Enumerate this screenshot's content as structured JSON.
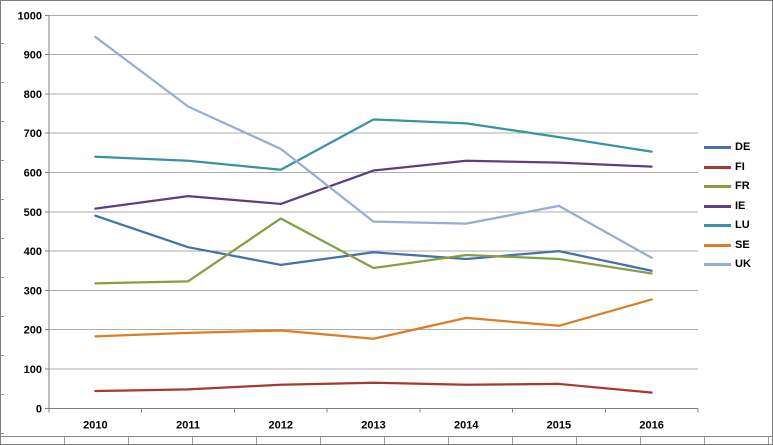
{
  "chart_data": {
    "type": "line",
    "title": "",
    "xlabel": "",
    "ylabel": "",
    "categories": [
      "2010",
      "2011",
      "2012",
      "2013",
      "2014",
      "2015",
      "2016"
    ],
    "series": [
      {
        "name": "DE",
        "color": "#4572A7",
        "values": [
          490,
          410,
          365,
          397,
          380,
          400,
          350
        ]
      },
      {
        "name": "FI",
        "color": "#A33B30",
        "values": [
          44,
          48,
          60,
          65,
          60,
          62,
          40
        ]
      },
      {
        "name": "FR",
        "color": "#84A043",
        "values": [
          318,
          323,
          483,
          357,
          390,
          380,
          343
        ]
      },
      {
        "name": "IE",
        "color": "#5A4080",
        "values": [
          508,
          540,
          520,
          605,
          630,
          625,
          615
        ]
      },
      {
        "name": "LU",
        "color": "#3793A5",
        "values": [
          640,
          630,
          607,
          735,
          725,
          690,
          653
        ]
      },
      {
        "name": "SE",
        "color": "#DE7D23",
        "values": [
          183,
          192,
          198,
          177,
          230,
          210,
          277
        ]
      },
      {
        "name": "UK",
        "color": "#98ADD3",
        "values": [
          945,
          768,
          660,
          475,
          470,
          515,
          383
        ]
      }
    ],
    "ylim": [
      0,
      1000
    ],
    "ytick_step": 100,
    "grid": true,
    "legend_position": "right"
  },
  "axes": {
    "y_tick_labels": [
      "0",
      "100",
      "200",
      "300",
      "400",
      "500",
      "600",
      "700",
      "800",
      "900",
      "1000"
    ],
    "x_tick_labels": [
      "2010",
      "2011",
      "2012",
      "2013",
      "2014",
      "2015",
      "2016"
    ]
  },
  "colors": {
    "background": "#FFFFFF",
    "frame_border": "#7F7F7F",
    "chart_border": "#8C8C8C",
    "gridline": "#ADADAD",
    "axis": "#808080",
    "text": "#000000",
    "sliver_tick": "#9B9B9B"
  }
}
